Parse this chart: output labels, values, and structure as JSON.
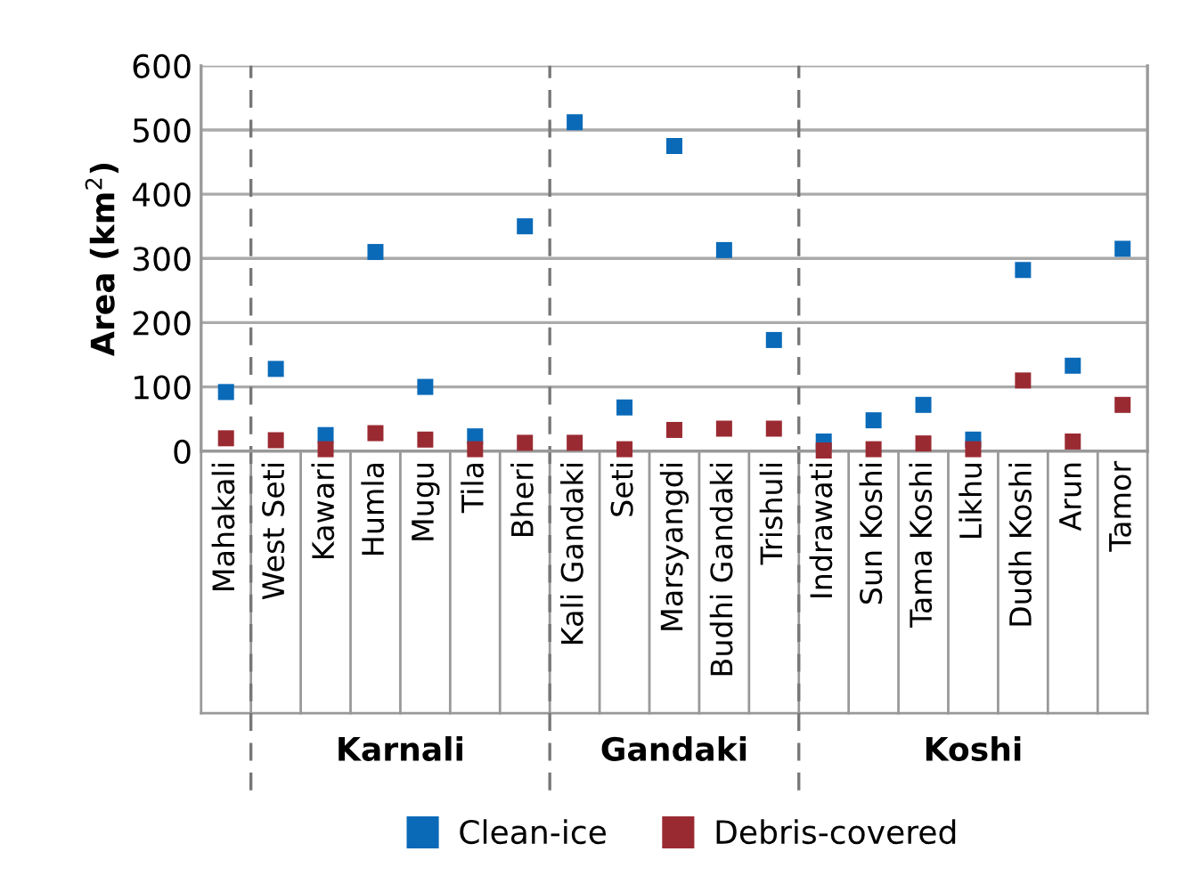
{
  "chart_data": {
    "type": "scatter",
    "ylabel": "Area (km$^{2}$)",
    "categories": [
      "Mahakali",
      "West Seti",
      "Kawari",
      "Humla",
      "Mugu",
      "Tila",
      "Bheri",
      "Kali Gandaki",
      "Seti",
      "Marsyangdi",
      "Budhi Gandaki",
      "Trishuli",
      "Indrawati",
      "Sun Koshi",
      "Tama Koshi",
      "Likhu",
      "Dudh Koshi",
      "Arun",
      "Tamor"
    ],
    "series": [
      {
        "name": "Clean-ice",
        "color": "#0a6ab8",
        "values": [
          92,
          128,
          25,
          310,
          100,
          23,
          350,
          512,
          68,
          475,
          313,
          173,
          15,
          48,
          72,
          18,
          282,
          133,
          315
        ]
      },
      {
        "name": "Debris-covered",
        "color": "#9a2a32",
        "values": [
          20,
          17,
          3,
          28,
          18,
          3,
          13,
          13,
          3,
          33,
          35,
          35,
          1,
          3,
          12,
          3,
          110,
          15,
          72
        ]
      }
    ],
    "ylim": [
      0,
      600
    ],
    "yticks": [
      0,
      100,
      200,
      300,
      400,
      500,
      600
    ],
    "grid": "y",
    "marker": "square",
    "legend": "bottom",
    "annotations": [
      "Karnali",
      "Gandaki",
      "Koshi"
    ]
  }
}
